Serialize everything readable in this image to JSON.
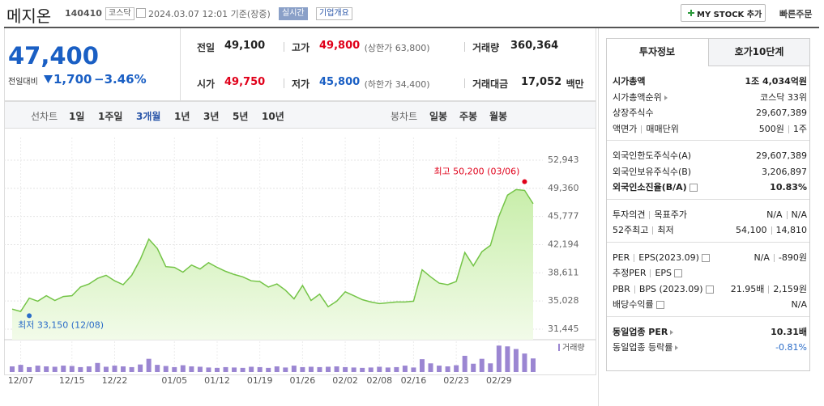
{
  "header": {
    "name": "메지온",
    "code": "140410",
    "market": "코스닥",
    "time": "2024.03.07 12:01 기준(장중)",
    "realtime": "실시간",
    "overview": "기업개요",
    "my_stock": "MY STOCK 추가",
    "quick_order": "빠른주문"
  },
  "quote": {
    "price": "47,400",
    "change_label": "전일대비",
    "change": "1,700",
    "change_pct": "−3.46%",
    "items": [
      {
        "label": "전일",
        "value": "49,100"
      },
      {
        "label": "고가",
        "value": "49,800",
        "note": "(상한가 63,800)",
        "color": "#e0001a"
      },
      {
        "label": "거래량",
        "value": "360,364"
      },
      {
        "label": "시가",
        "value": "49,750",
        "color": "#e0001a"
      },
      {
        "label": "저가",
        "value": "45,800",
        "note": "(하한가 34,400)",
        "color": "#1a5fc4"
      },
      {
        "label": "거래대금",
        "value": "17,052",
        "unit": "백만"
      }
    ]
  },
  "tabs": {
    "line": "선차트",
    "line_periods": [
      "1일",
      "1주일",
      "3개월",
      "1년",
      "3년",
      "5년",
      "10년"
    ],
    "active": 2,
    "candle": "봉차트",
    "candle_periods": [
      "일봉",
      "주봉",
      "월봉"
    ]
  },
  "chart_data": {
    "type": "line",
    "color": "#74c447",
    "categories": [
      null,
      "12/07",
      null,
      null,
      null,
      null,
      null,
      "12/15",
      null,
      null,
      null,
      null,
      "12/22",
      null,
      null,
      null,
      null,
      null,
      null,
      "01/05",
      null,
      null,
      null,
      null,
      "01/12",
      null,
      null,
      null,
      null,
      "01/19",
      null,
      null,
      null,
      null,
      "01/26",
      null,
      null,
      null,
      null,
      "02/02",
      null,
      null,
      null,
      "02/08",
      null,
      null,
      null,
      "02/16",
      null,
      null,
      null,
      null,
      "02/23",
      null,
      null,
      null,
      null,
      "02/29",
      null,
      null,
      null,
      null
    ],
    "values": [
      34000,
      33700,
      35400,
      35000,
      35700,
      35100,
      35600,
      35700,
      36800,
      37200,
      37900,
      38300,
      37600,
      37100,
      38300,
      40300,
      42900,
      41700,
      39400,
      39300,
      38700,
      39600,
      39100,
      39900,
      39300,
      38800,
      38400,
      38100,
      37600,
      37500,
      36800,
      37200,
      36400,
      35300,
      37000,
      35100,
      35900,
      34300,
      35000,
      36200,
      35700,
      35200,
      34900,
      34700,
      34800,
      34900,
      34900,
      35000,
      39000,
      38100,
      37300,
      37100,
      37500,
      41200,
      39500,
      41300,
      42100,
      45800,
      48500,
      49200,
      49100,
      47400
    ],
    "ylim": [
      31445,
      52943
    ],
    "yticks": [
      {
        "value": 31445,
        "label": "31,445"
      },
      {
        "value": 35028,
        "label": "35,028"
      },
      {
        "value": 38611,
        "label": "38,611"
      },
      {
        "value": 42194,
        "label": "42,194"
      },
      {
        "value": 45777,
        "label": "45,777"
      },
      {
        "value": 49360,
        "label": "49,360"
      },
      {
        "value": 52943,
        "label": "52,943"
      }
    ],
    "high": {
      "label": "최고 50,200 (03/06)",
      "value": 50200,
      "index": 60,
      "color": "#e0001a"
    },
    "low": {
      "label": "최저 33,150 (12/08)",
      "value": 33150,
      "index": 2,
      "color": "#2a6cc8"
    },
    "volume": {
      "name": "거래량",
      "color": "#9b86d2",
      "ylim": [
        0,
        750000
      ],
      "values": [
        150000,
        190000,
        130000,
        170000,
        150000,
        140000,
        170000,
        160000,
        130000,
        150000,
        240000,
        140000,
        170000,
        150000,
        130000,
        200000,
        350000,
        190000,
        160000,
        130000,
        180000,
        150000,
        140000,
        120000,
        110000,
        130000,
        120000,
        110000,
        140000,
        130000,
        110000,
        150000,
        120000,
        170000,
        130000,
        140000,
        130000,
        140000,
        150000,
        130000,
        120000,
        110000,
        120000,
        140000,
        120000,
        130000,
        170000,
        120000,
        340000,
        230000,
        170000,
        150000,
        180000,
        430000,
        220000,
        350000,
        230000,
        700000,
        680000,
        610000,
        490000,
        360364
      ]
    }
  },
  "sidebar": {
    "tabs": [
      "투자정보",
      "호가10단계"
    ],
    "groups": [
      [
        {
          "labels": [
            "시가총액"
          ],
          "values": [
            "1조 4,034억원"
          ],
          "bold": true
        },
        {
          "labels": [
            "시가총액순위"
          ],
          "values": [
            "코스닥 33위"
          ],
          "arrow": true
        },
        {
          "labels": [
            "상장주식수"
          ],
          "values": [
            "29,607,389"
          ]
        },
        {
          "labels": [
            "액면가",
            "매매단위"
          ],
          "values": [
            "500원",
            "1주"
          ]
        }
      ],
      [
        {
          "labels": [
            "외국인한도주식수(A)"
          ],
          "values": [
            "29,607,389"
          ]
        },
        {
          "labels": [
            "외국인보유주식수(B)"
          ],
          "values": [
            "3,206,897"
          ]
        },
        {
          "labels": [
            "외국인소진율(B/A)"
          ],
          "values": [
            "10.83%"
          ],
          "bold": true,
          "help": true
        }
      ],
      [
        {
          "labels": [
            "투자의견",
            "목표주가"
          ],
          "values": [
            "N/A",
            "N/A"
          ]
        },
        {
          "labels": [
            "52주최고",
            "최저"
          ],
          "values": [
            "54,100",
            "14,810"
          ]
        }
      ],
      [
        {
          "labels": [
            "PER",
            "EPS(2023.09)"
          ],
          "values": [
            "N/A",
            "-890원"
          ],
          "help": true
        },
        {
          "labels": [
            "추정PER",
            "EPS"
          ],
          "values": [],
          "help": true
        },
        {
          "labels": [
            "PBR",
            "BPS (2023.09)"
          ],
          "values": [
            "21.95배",
            "2,159원"
          ],
          "help": true
        },
        {
          "labels": [
            "배당수익률"
          ],
          "values": [
            "N/A"
          ],
          "help": true
        }
      ],
      [
        {
          "labels": [
            "동일업종 PER"
          ],
          "values": [
            "10.31배"
          ],
          "bold": true,
          "arrow": true
        },
        {
          "labels": [
            "동일업종 등락률"
          ],
          "values": [
            "-0.81%"
          ],
          "arrow": true,
          "color": "#2a6cc8"
        }
      ]
    ]
  }
}
